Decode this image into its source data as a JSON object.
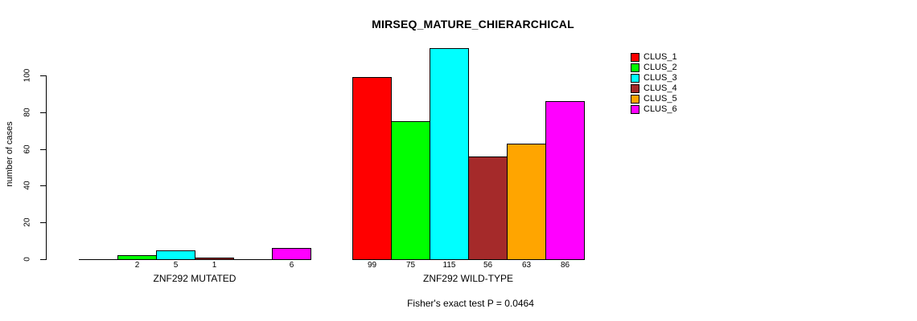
{
  "title": "MIRSEQ_MATURE_CHIERARCHICAL",
  "caption": "Fisher's exact test P = 0.0464",
  "chart_data": {
    "type": "bar",
    "title": "MIRSEQ_MATURE_CHIERARCHICAL",
    "xlabel": "",
    "ylabel": "number of cases",
    "ylim": [
      0,
      100
    ],
    "yticks": [
      0,
      20,
      40,
      60,
      80,
      100
    ],
    "grid": false,
    "legend_position": "right-outside",
    "series": [
      {
        "name": "CLUS_1",
        "color": "#FF0000"
      },
      {
        "name": "CLUS_2",
        "color": "#00FF00"
      },
      {
        "name": "CLUS_3",
        "color": "#00FFFF"
      },
      {
        "name": "CLUS_4",
        "color": "#A52A2A"
      },
      {
        "name": "CLUS_5",
        "color": "#FFA500"
      },
      {
        "name": "CLUS_6",
        "color": "#FF00FF"
      }
    ],
    "groups": [
      {
        "label": "ZNF292 MUTATED",
        "values": [
          0,
          2,
          5,
          1,
          0,
          6
        ],
        "bar_labels": [
          "",
          "2",
          "5",
          "1",
          "",
          "6"
        ]
      },
      {
        "label": "ZNF292 WILD-TYPE",
        "values": [
          99,
          75,
          115,
          56,
          63,
          86
        ],
        "bar_labels": [
          "99",
          "75",
          "115",
          "56",
          "63",
          "86"
        ]
      }
    ],
    "annotation": "Fisher's exact test P = 0.0464"
  }
}
